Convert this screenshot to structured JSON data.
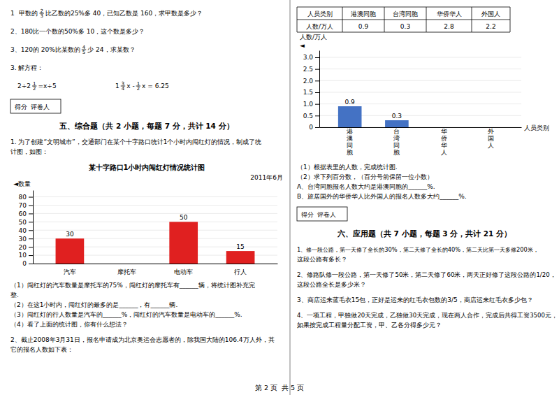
{
  "chart_data": [
    {
      "type": "bar",
      "title": "某十字路口1小时内闯红灯情况统计图",
      "subtitle": "2011年6月",
      "categories": [
        "汽车",
        "摩托车",
        "电动车",
        "行人"
      ],
      "values": [
        30,
        0,
        50,
        15
      ],
      "value_labels": [
        "30",
        null,
        "50",
        "15"
      ],
      "color": "#e02020",
      "ylim": [
        0,
        88
      ],
      "yticks": [
        0,
        10,
        20,
        30,
        40,
        50,
        60,
        70,
        80
      ],
      "grid": true,
      "ylabel": "◄数量"
    },
    {
      "type": "bar",
      "categories": [
        "港澳同胞",
        "台湾同胞",
        "华侨华人",
        "外国人"
      ],
      "values": [
        0.9,
        0.3,
        0,
        0
      ],
      "value_labels": [
        "0.9",
        "0.3",
        null,
        null
      ],
      "color": "#4472c4",
      "ylim": [
        0,
        3.3
      ],
      "yticks": [
        0,
        0.5,
        {
          "value": 1,
          "label": "1.0"
        },
        1.5,
        {
          "value": 2,
          "label": "2.0"
        },
        2.5,
        {
          "value": 3,
          "label": "3.0"
        }
      ],
      "grid": true,
      "ylabel": "人数/万人",
      "xlabel": "人员类别",
      "annotations": [
        "◄"
      ]
    }
  ],
  "page": {
    "left_above": [
      {
        "lines": [
          [
            "1  ",
            "甲数的",
            {
              "num": "2",
              "den": "3"
            },
            "比乙数的25%多 40，已知乙数是 160，求甲数是多少？"
          ]
        ]
      },
      {
        "lines": [
          [
            "2、180比一个数的50%多 10，这个数是多少？"
          ]
        ]
      },
      {
        "lines": [
          [
            "3、120的 20%比某数的",
            {
              "num": "4",
              "den": "5"
            },
            "少 24，求某数？"
          ]
        ]
      },
      {
        "lines": [
          [
            "3. 解方程："
          ]
        ]
      },
      {
        "equations": [
          [
            "2÷2",
            {
              "num": "1",
              "den": "2"
            },
            "=x÷5"
          ],
          [
            "1",
            {
              "num": "3",
              "den": "4"
            },
            "x -",
            {
              "num": "1",
              "den": "2"
            },
            "x = 6.25"
          ]
        ]
      },
      {
        "score_box": "得分  评卷人"
      },
      {
        "heading": "五、综合题（共 2 小题，每题 7 分，共计 14 分）"
      },
      {
        "lines": [
          [
            "1. 为了创建“文明城市”，交通部门在某个十字路口统计1个小时内闯红灯的情况，制成了统"
          ],
          [
            "计图，如图："
          ]
        ]
      }
    ],
    "left_below": [
      {
        "lines": [
          [
            "（1）闯红灯的汽车数量是摩托车的75%，闯红灯的摩托车有______辆，将统计图补充完"
          ],
          [
            "整."
          ],
          [
            "（2）在这1小时内，闯红灯的最多的是______，有______辆."
          ],
          [
            "（3）闯红灯的行人数量是汽车的______%，闯红灯的汽车数量是电动车的______%."
          ],
          [
            "（4）看了上面的统计图，你有什么想法？"
          ]
        ]
      },
      {
        "lines": [
          [
            "2、截止2008年3月31日，报名申请成为北京奥运会志愿者的，除我国大陆的106.4万人外，其"
          ],
          [
            "它的报名人数如下表："
          ]
        ]
      }
    ],
    "table": {
      "headers": [
        "人员类别",
        "港澳同胞",
        "台湾同胞",
        "华侨华人",
        "外国人"
      ],
      "row_label": "人数/万人",
      "values": [
        "0.9",
        "0.3",
        "2.8",
        "2.2"
      ]
    },
    "right_below": [
      {
        "lines": [
          [
            "（1）根据表里的人数，完成统计图."
          ],
          [
            "（2）求下列百分数，（百分号前保留一位小数）"
          ],
          [
            "A、台湾同胞报名人数大约是港澳同胞的______%."
          ],
          [
            "B、旅居国外的华侨华人比外国人的报名人数多大约______%."
          ]
        ]
      },
      {
        "score_box": "得分  评卷人"
      },
      {
        "heading": "六、应用题（共 7 小题，每题 3 分，共计 21 分）"
      },
      {
        "lines": [
          [
            "1、修一段公路，第一天修了全长的30%，第二天修了全长的40%，第二天比第一天多修200米，"
          ],
          [
            "这段公路有多长？"
          ]
        ]
      },
      {
        "lines": [
          [
            "2、修路队修一段公路，第一天修了50米，第二天修了60米，两天正好修了这段公路的1/20，"
          ],
          [
            "这段公路全长是多少米？"
          ]
        ]
      },
      {
        "lines": [
          [
            "3、商店运来蓝毛衣15包，正好是运来的红毛衣包数的3/5，商店运来红毛衣多少包？"
          ]
        ]
      },
      {
        "lines": [
          [
            "4、一项工程，甲独做20天完成，乙独做30天完成，现在两人合作，完成后共得工资3500元，"
          ],
          [
            "如果按完成工程量分配工资，甲、乙各分得多少元？"
          ]
        ]
      }
    ],
    "footer": "第 2 页  共 5 页"
  }
}
